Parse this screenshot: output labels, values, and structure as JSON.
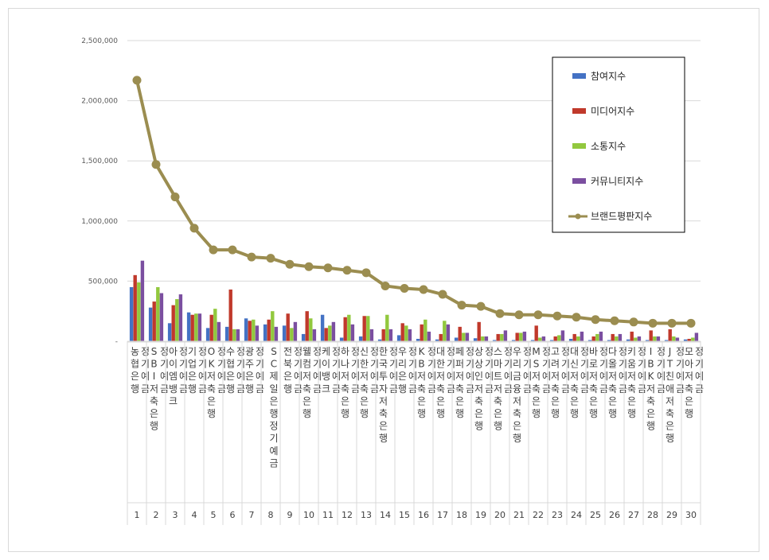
{
  "chart_data": {
    "type": "bar",
    "ylim": [
      0,
      2500000
    ],
    "yticks": [
      "-",
      "500,000",
      "1,000,000",
      "1,500,000",
      "2,000,000",
      "2,500,000"
    ],
    "grid": true,
    "legend_position": "top-right",
    "ranks": [
      "1",
      "2",
      "3",
      "4",
      "5",
      "6",
      "7",
      "8",
      "9",
      "10",
      "11",
      "12",
      "13",
      "14",
      "15",
      "16",
      "17",
      "18",
      "19",
      "20",
      "21",
      "22",
      "23",
      "24",
      "25",
      "26",
      "27",
      "28",
      "29",
      "30"
    ],
    "categories": [
      [
        "농협은행",
        "정기예금"
      ],
      [
        "SBI저축은행",
        "정기예금"
      ],
      [
        "아이엠뱅크",
        "정기예금"
      ],
      [
        "기업은행",
        "정기예금"
      ],
      [
        "OK저축은행",
        "정기예금"
      ],
      [
        "수협은행",
        "정기예금"
      ],
      [
        "광주은행",
        "정기예금"
      ],
      [
        "SC제일은행정기예금"
      ],
      [
        "전북은행",
        "정기예금"
      ],
      [
        "웰컴저축은행",
        "정기예금"
      ],
      [
        "케이뱅크",
        "정기예금"
      ],
      [
        "하나저축은행",
        "정기예금"
      ],
      [
        "신한저축은행",
        "정기예금"
      ],
      [
        "한국투자저축은행",
        "정기예금"
      ],
      [
        "우리은행",
        "정기예금"
      ],
      [
        "KB저축은행",
        "정기예금"
      ],
      [
        "대한저축은행",
        "정기예금"
      ],
      [
        "페퍼저축은행",
        "정기예금"
      ],
      [
        "상상인저축은행",
        "정기예금"
      ],
      [
        "스마트저축은행",
        "정기예금"
      ],
      [
        "우리금융저축은행",
        "정기예금"
      ],
      [
        "MS저축은행",
        "정기예금"
      ],
      [
        "고려저축은행",
        "정기예금"
      ],
      [
        "대신저축은행",
        "정기예금"
      ],
      [
        "바로저축은행",
        "정기예금"
      ],
      [
        "다올저축은행",
        "정기예금"
      ],
      [
        "키움저축은행",
        "정기예금"
      ],
      [
        "IBK저축은행",
        "정기예금"
      ],
      [
        "JT친애저축은행",
        "정기예금"
      ],
      [
        "모아저축은행",
        "정기예금"
      ]
    ],
    "series": [
      {
        "name": "참여지수",
        "type": "bar",
        "color": "#4472C4",
        "values": [
          450000,
          280000,
          150000,
          240000,
          110000,
          120000,
          190000,
          140000,
          130000,
          60000,
          220000,
          30000,
          40000,
          15000,
          50000,
          20000,
          15000,
          30000,
          25000,
          10000,
          10000,
          10000,
          10000,
          20000,
          10000,
          10000,
          15000,
          10000,
          10000,
          15000
        ]
      },
      {
        "name": "미디어지수",
        "type": "bar",
        "color": "#C0392B",
        "values": [
          550000,
          330000,
          300000,
          220000,
          220000,
          430000,
          170000,
          180000,
          230000,
          250000,
          110000,
          200000,
          210000,
          100000,
          150000,
          140000,
          60000,
          120000,
          160000,
          60000,
          70000,
          130000,
          40000,
          60000,
          40000,
          60000,
          80000,
          90000,
          100000,
          20000
        ]
      },
      {
        "name": "소통지수",
        "type": "bar",
        "color": "#92C83E",
        "values": [
          490000,
          450000,
          350000,
          230000,
          270000,
          100000,
          180000,
          250000,
          110000,
          190000,
          130000,
          220000,
          210000,
          220000,
          130000,
          180000,
          170000,
          70000,
          40000,
          60000,
          70000,
          30000,
          50000,
          40000,
          60000,
          40000,
          30000,
          40000,
          40000,
          30000
        ]
      },
      {
        "name": "커뮤니티지수",
        "type": "bar",
        "color": "#7B4FA0",
        "values": [
          670000,
          400000,
          390000,
          230000,
          160000,
          100000,
          130000,
          120000,
          160000,
          100000,
          160000,
          140000,
          100000,
          100000,
          100000,
          80000,
          140000,
          70000,
          40000,
          90000,
          80000,
          40000,
          90000,
          80000,
          80000,
          60000,
          40000,
          40000,
          30000,
          70000
        ]
      },
      {
        "name": "브랜드평판지수",
        "type": "line",
        "color": "#9B8D50",
        "values": [
          2170000,
          1470000,
          1200000,
          940000,
          760000,
          760000,
          700000,
          690000,
          640000,
          620000,
          610000,
          590000,
          570000,
          460000,
          440000,
          430000,
          390000,
          300000,
          290000,
          230000,
          220000,
          220000,
          210000,
          200000,
          180000,
          170000,
          160000,
          150000,
          150000,
          150000
        ]
      }
    ]
  }
}
